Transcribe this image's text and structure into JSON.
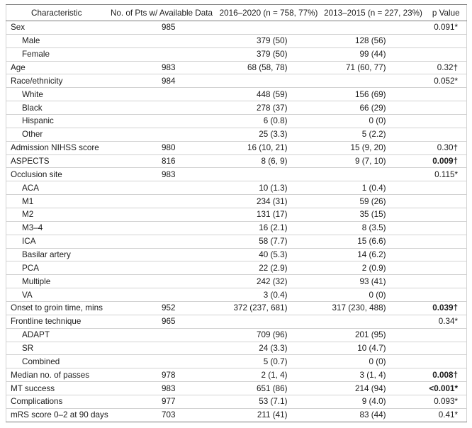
{
  "table": {
    "headers": [
      "Characteristic",
      "No. of Pts w/ Available Data",
      "2016–2020 (n = 758, 77%)",
      "2013–2015 (n = 227, 23%)",
      "p Value"
    ],
    "rows": [
      {
        "label": "Sex",
        "n": "985",
        "p": "0.091*",
        "items": [
          {
            "label": "Male",
            "v2016_2020": "379 (50)",
            "v2013_2015": "128 (56)"
          },
          {
            "label": "Female",
            "v2016_2020": "379 (50)",
            "v2013_2015": "99 (44)"
          }
        ]
      },
      {
        "label": "Age",
        "n": "983",
        "v2016_2020": "68 (58, 78)",
        "v2013_2015": "71 (60, 77)",
        "p": "0.32†"
      },
      {
        "label": "Race/ethnicity",
        "n": "984",
        "p": "0.052*",
        "items": [
          {
            "label": "White",
            "v2016_2020": "448 (59)",
            "v2013_2015": "156 (69)"
          },
          {
            "label": "Black",
            "v2016_2020": "278 (37)",
            "v2013_2015": "66 (29)"
          },
          {
            "label": "Hispanic",
            "v2016_2020": "6 (0.8)",
            "v2013_2015": "0 (0)"
          },
          {
            "label": "Other",
            "v2016_2020": "25 (3.3)",
            "v2013_2015": "5 (2.2)"
          }
        ]
      },
      {
        "label": "Admission NIHSS score",
        "n": "980",
        "v2016_2020": "16 (10, 21)",
        "v2013_2015": "15 (9, 20)",
        "p": "0.30†"
      },
      {
        "label": "ASPECTS",
        "n": "816",
        "v2016_2020": "8 (6, 9)",
        "v2013_2015": "9 (7, 10)",
        "p": "0.009†",
        "p_bold": true
      },
      {
        "label": "Occlusion site",
        "n": "983",
        "p": "0.115*",
        "items": [
          {
            "label": "ACA",
            "v2016_2020": "10 (1.3)",
            "v2013_2015": "1 (0.4)"
          },
          {
            "label": "M1",
            "v2016_2020": "234 (31)",
            "v2013_2015": "59 (26)"
          },
          {
            "label": "M2",
            "v2016_2020": "131 (17)",
            "v2013_2015": "35 (15)"
          },
          {
            "label": "M3–4",
            "v2016_2020": "16 (2.1)",
            "v2013_2015": "8 (3.5)"
          },
          {
            "label": "ICA",
            "v2016_2020": "58 (7.7)",
            "v2013_2015": "15 (6.6)"
          },
          {
            "label": "Basilar artery",
            "v2016_2020": "40 (5.3)",
            "v2013_2015": "14 (6.2)"
          },
          {
            "label": "PCA",
            "v2016_2020": "22 (2.9)",
            "v2013_2015": "2 (0.9)"
          },
          {
            "label": "Multiple",
            "v2016_2020": "242 (32)",
            "v2013_2015": "93 (41)"
          },
          {
            "label": "VA",
            "v2016_2020": "3 (0.4)",
            "v2013_2015": "0 (0)"
          }
        ]
      },
      {
        "label": "Onset to groin time, mins",
        "n": "952",
        "v2016_2020": "372 (237, 681)",
        "v2013_2015": "317 (230, 488)",
        "p": "0.039†",
        "p_bold": true
      },
      {
        "label": "Frontline technique",
        "n": "965",
        "p": "0.34*",
        "items": [
          {
            "label": "ADAPT",
            "v2016_2020": "709 (96)",
            "v2013_2015": "201 (95)"
          },
          {
            "label": "SR",
            "v2016_2020": "24 (3.3)",
            "v2013_2015": "10 (4.7)"
          },
          {
            "label": "Combined",
            "v2016_2020": "5 (0.7)",
            "v2013_2015": "0 (0)"
          }
        ]
      },
      {
        "label": "Median no. of passes",
        "n": "978",
        "v2016_2020": "2 (1, 4)",
        "v2013_2015": "3 (1, 4)",
        "p": "0.008†",
        "p_bold": true
      },
      {
        "label": "MT success",
        "n": "983",
        "v2016_2020": "651 (86)",
        "v2013_2015": "214 (94)",
        "p": "<0.001*",
        "p_bold": true
      },
      {
        "label": "Complications",
        "n": "977",
        "v2016_2020": "53 (7.1)",
        "v2013_2015": "9 (4.0)",
        "p": "0.093*"
      },
      {
        "label": "mRS score 0–2 at 90 days",
        "n": "703",
        "v2016_2020": "211 (41)",
        "v2013_2015": "83 (44)",
        "p": "0.41*"
      }
    ]
  }
}
